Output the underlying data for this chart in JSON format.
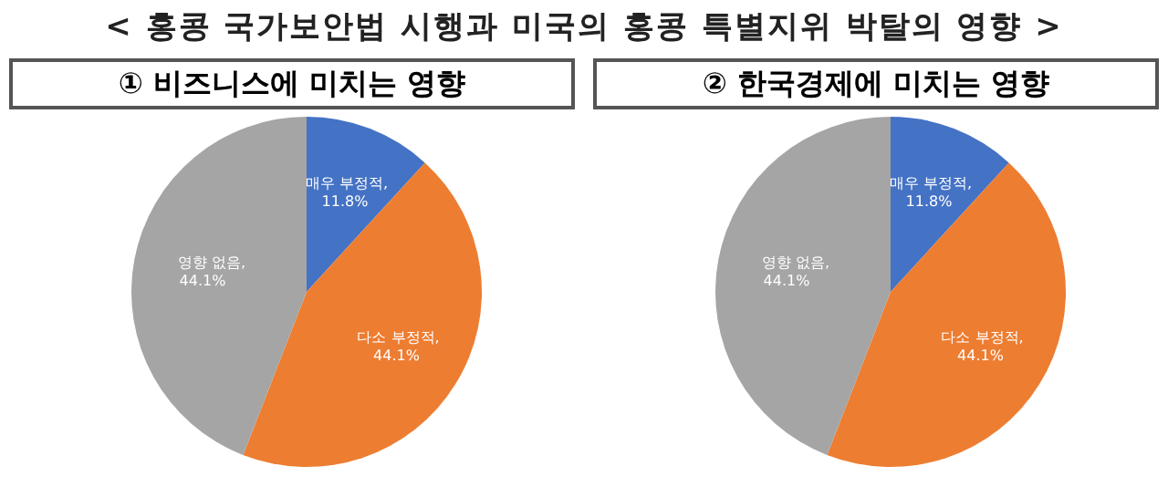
{
  "chart_data": [
    {
      "type": "other",
      "title": "< 홍콩 국가보안법 시행과 미국의 홍콩 특별지위 박탈의 영향 >"
    },
    {
      "type": "pie",
      "title": "① 비즈니스에 미치는 영향",
      "categories": [
        "매우 부정적",
        "다소 부정적",
        "영향 없음"
      ],
      "values": [
        11.8,
        44.1,
        44.1
      ],
      "colors": [
        "#4472c4",
        "#ed7d31",
        "#a5a5a5"
      ],
      "value_labels": [
        ", 11.8%",
        ", 44.1%",
        ", 44.1%"
      ],
      "legend": false
    },
    {
      "type": "pie",
      "title": "② 한국경제에 미치는 영향",
      "categories": [
        "매우 부정적",
        "다소 부정적",
        "영향 없음"
      ],
      "values": [
        11.8,
        44.1,
        44.1
      ],
      "colors": [
        "#4472c4",
        "#ed7d31",
        "#a5a5a5"
      ],
      "value_labels": [
        ", 11.8%",
        ", 44.1%",
        ", 44.1%"
      ],
      "legend": false
    }
  ]
}
